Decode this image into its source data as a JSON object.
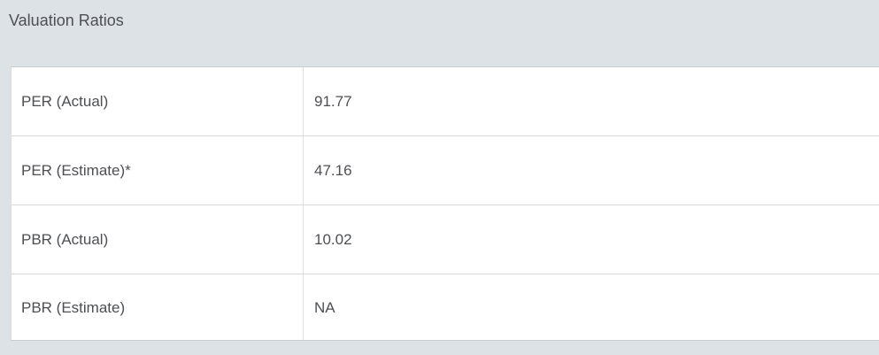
{
  "widget": {
    "title": "Valuation Ratios"
  },
  "table": {
    "rows": [
      {
        "label": "PER (Actual)",
        "value": "91.77"
      },
      {
        "label": "PER (Estimate)*",
        "value": "47.16"
      },
      {
        "label": "PBR (Actual)",
        "value": "10.02"
      },
      {
        "label": "PBR (Estimate)",
        "value": "NA"
      }
    ]
  },
  "colors": {
    "page_background": "#dde2e6",
    "cell_background": "#ffffff",
    "outer_border": "#c9cdd1",
    "row_divider": "#d8d8d8",
    "column_divider": "#e0e0e0",
    "text": "#4d4f53"
  }
}
